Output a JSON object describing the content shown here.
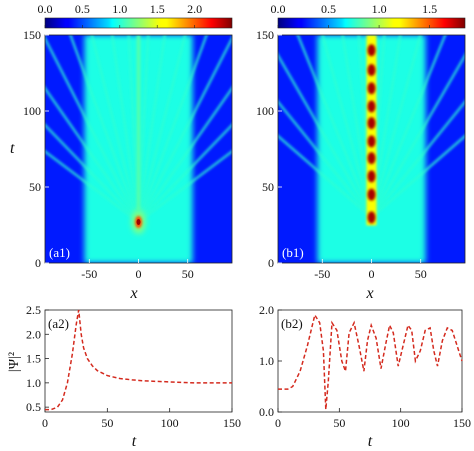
{
  "chart_data": [
    {
      "id": "a1",
      "type": "heatmap",
      "panel_label": "(a1)",
      "xlabel": "x",
      "ylabel": "t",
      "xlim": [
        -95,
        95
      ],
      "ylim": [
        0,
        150
      ],
      "xticks": [
        -50,
        0,
        50
      ],
      "yticks": [
        0,
        50,
        100,
        150
      ],
      "colorbar": {
        "range": [
          0,
          2.5
        ],
        "ticks": [
          "0.0",
          "0.5",
          "1.0",
          "1.5",
          "2.0"
        ],
        "tick_values": [
          0,
          0.5,
          1.0,
          1.5,
          2.0
        ]
      },
      "background_level": 0.15,
      "plateau": {
        "x_from": -55,
        "x_to": 55,
        "level": 0.4
      },
      "peak": {
        "x": 0,
        "t": 27,
        "value": 2.5
      },
      "central_filament": {
        "x": 0,
        "t_from": 35,
        "t_to": 150,
        "level": 1.05
      },
      "rays": [
        {
          "angle_deg": 3
        },
        {
          "angle_deg": 8
        },
        {
          "angle_deg": 14
        },
        {
          "angle_deg": 20
        },
        {
          "angle_deg": 27
        },
        {
          "angle_deg": 35
        },
        {
          "angle_deg": 44
        },
        {
          "angle_deg": 53
        }
      ]
    },
    {
      "id": "b1",
      "type": "heatmap",
      "panel_label": "(b1)",
      "xlabel": "x",
      "ylabel": "",
      "xlim": [
        -95,
        95
      ],
      "ylim": [
        0,
        150
      ],
      "xticks": [
        -50,
        0,
        50
      ],
      "yticks": [
        0,
        50,
        100,
        150
      ],
      "colorbar": {
        "range": [
          0,
          1.85
        ],
        "ticks": [
          "0.0",
          "0.5",
          "1.0",
          "1.5"
        ],
        "tick_values": [
          0,
          0.5,
          1.0,
          1.5
        ]
      },
      "background_level": 0.15,
      "plateau": {
        "x_from": -55,
        "x_to": 55,
        "level": 0.4
      },
      "central_breathers": {
        "x": 0,
        "t_peaks": [
          30,
          45,
          57,
          69,
          80,
          92,
          103,
          115,
          127,
          140
        ],
        "value": 1.85
      },
      "rays": [
        {
          "angle_deg": 4
        },
        {
          "angle_deg": 9
        },
        {
          "angle_deg": 15
        },
        {
          "angle_deg": 22
        },
        {
          "angle_deg": 30
        },
        {
          "angle_deg": 39
        },
        {
          "angle_deg": 49
        }
      ]
    },
    {
      "id": "a2",
      "type": "line",
      "panel_label": "(a2)",
      "xlabel": "t",
      "ylabel": "|Ψ|²",
      "xlim": [
        0,
        150
      ],
      "ylim": [
        0.4,
        2.5
      ],
      "xticks": [
        0,
        50,
        100,
        150
      ],
      "yticks": [
        0.5,
        1.0,
        1.5,
        2.0,
        2.5
      ],
      "ytick_labels": [
        "0.5",
        "1.0",
        "1.5",
        "2.0",
        "2.5"
      ],
      "line_color": "#d42a1e",
      "x": [
        0,
        5,
        10,
        14,
        18,
        22,
        25,
        27,
        29,
        31,
        34,
        38,
        42,
        46,
        50,
        60,
        70,
        80,
        90,
        100,
        110,
        120,
        130,
        140,
        150
      ],
      "y": [
        0.45,
        0.45,
        0.5,
        0.65,
        1.0,
        1.6,
        2.2,
        2.5,
        2.0,
        1.72,
        1.5,
        1.35,
        1.25,
        1.2,
        1.15,
        1.09,
        1.06,
        1.04,
        1.03,
        1.02,
        1.01,
        1.0,
        1.0,
        1.0,
        1.0
      ]
    },
    {
      "id": "b2",
      "type": "line",
      "panel_label": "(b2)",
      "xlabel": "t",
      "ylabel": "",
      "xlim": [
        0,
        150
      ],
      "ylim": [
        0,
        2.0
      ],
      "xticks": [
        0,
        50,
        100,
        150
      ],
      "yticks": [
        0,
        1.0,
        2.0
      ],
      "ytick_labels": [
        "0.0",
        "1.0",
        "2.0"
      ],
      "line_color": "#d42a1e",
      "x": [
        0,
        8,
        12,
        18,
        24,
        30,
        34,
        37,
        39,
        41,
        44,
        48,
        52,
        55,
        58,
        62,
        66,
        70,
        73,
        76,
        80,
        84,
        88,
        91,
        94,
        98,
        102,
        106,
        109,
        112,
        116,
        120,
        124,
        127,
        130,
        134,
        138,
        142,
        146,
        150
      ],
      "y": [
        0.45,
        0.45,
        0.5,
        0.8,
        1.3,
        1.9,
        1.75,
        1.2,
        0.05,
        0.6,
        1.75,
        1.6,
        1.0,
        0.8,
        1.55,
        1.75,
        1.3,
        0.8,
        1.4,
        1.7,
        1.45,
        0.85,
        1.35,
        1.7,
        1.55,
        0.9,
        1.3,
        1.7,
        1.6,
        1.0,
        1.2,
        1.6,
        1.65,
        1.2,
        0.9,
        1.4,
        1.65,
        1.6,
        1.3,
        1.0
      ]
    }
  ]
}
